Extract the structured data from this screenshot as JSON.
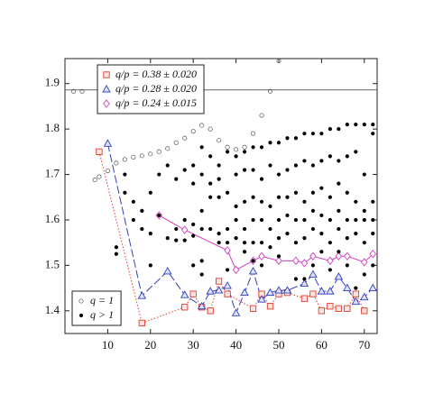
{
  "chart_data": {
    "type": "scatter",
    "xlim": [
      0,
      73
    ],
    "ylim": [
      1.35,
      1.955
    ],
    "xticks": [
      10,
      20,
      30,
      40,
      50,
      60,
      70
    ],
    "yticks": [
      1.4,
      1.5,
      1.6,
      1.7,
      1.8,
      1.9
    ],
    "hline": 1.886,
    "series": [
      {
        "name": "q/p = 0.38 ± 0.020",
        "color": "#e03c31",
        "marker": "square",
        "linestyle": "dotted",
        "legend_loc": "upper left",
        "x": [
          8,
          18,
          28,
          30,
          32,
          34,
          36,
          38,
          44,
          46,
          48,
          50,
          52,
          56,
          58,
          60,
          62,
          64,
          66,
          68,
          70
        ],
        "y": [
          1.75,
          1.373,
          1.408,
          1.437,
          1.408,
          1.4,
          1.465,
          1.437,
          1.405,
          1.437,
          1.41,
          1.437,
          1.44,
          1.427,
          1.437,
          1.4,
          1.41,
          1.405,
          1.405,
          1.437,
          1.4
        ]
      },
      {
        "name": "q/p = 0.28 ± 0.020",
        "color": "#3040c0",
        "marker": "triangle",
        "linestyle": "dashed",
        "legend_loc": "upper left",
        "x": [
          10,
          18,
          24,
          28,
          32,
          34,
          36,
          38,
          40,
          42,
          44,
          46,
          48,
          50,
          52,
          56,
          58,
          60,
          62,
          64,
          66,
          68,
          70,
          72
        ],
        "y": [
          1.768,
          1.433,
          1.487,
          1.435,
          1.41,
          1.443,
          1.445,
          1.455,
          1.395,
          1.44,
          1.487,
          1.425,
          1.44,
          1.445,
          1.445,
          1.46,
          1.48,
          1.443,
          1.443,
          1.475,
          1.45,
          1.42,
          1.43,
          1.45
        ]
      },
      {
        "name": "q/p = 0.24 ± 0.015",
        "color": "#d040c0",
        "marker": "diamond",
        "linestyle": "solid",
        "legend_loc": "upper left",
        "x": [
          22,
          28,
          38,
          40,
          44,
          46,
          50,
          54,
          56,
          58,
          62,
          64,
          66,
          70,
          72
        ],
        "y": [
          1.61,
          1.578,
          1.533,
          1.49,
          1.51,
          1.52,
          1.51,
          1.51,
          1.505,
          1.52,
          1.51,
          1.52,
          1.52,
          1.507,
          1.525
        ]
      },
      {
        "name": "q = 1",
        "color": "#555555",
        "marker": "circle",
        "legend_loc": "lower left",
        "x": [
          2,
          4,
          7,
          8,
          10,
          12,
          14,
          16,
          18,
          20,
          22,
          24,
          26,
          28,
          30,
          32,
          34,
          36,
          38,
          40,
          42,
          44,
          46,
          48,
          50
        ],
        "y": [
          1.883,
          1.883,
          1.688,
          1.695,
          1.708,
          1.725,
          1.733,
          1.738,
          1.741,
          1.745,
          1.75,
          1.757,
          1.77,
          1.78,
          1.795,
          1.808,
          1.8,
          1.775,
          1.76,
          1.755,
          1.76,
          1.79,
          1.83,
          1.883,
          1.95
        ]
      },
      {
        "name": "q > 1",
        "color": "#000000",
        "marker": "dot",
        "legend_loc": "lower left",
        "x": [
          12,
          12,
          14,
          14,
          16,
          16,
          18,
          18,
          20,
          20,
          20,
          22,
          22,
          24,
          24,
          26,
          26,
          26,
          28,
          28,
          28,
          30,
          30,
          30,
          30,
          30,
          32,
          32,
          32,
          32,
          32,
          32,
          34,
          34,
          34,
          34,
          36,
          36,
          36,
          36,
          36,
          38,
          38,
          38,
          38,
          38,
          40,
          40,
          40,
          40,
          40,
          42,
          42,
          42,
          42,
          42,
          42,
          44,
          44,
          44,
          44,
          44,
          44,
          46,
          46,
          46,
          46,
          46,
          46,
          48,
          48,
          48,
          48,
          48,
          50,
          50,
          50,
          50,
          50,
          50,
          52,
          52,
          52,
          52,
          52,
          54,
          54,
          54,
          54,
          54,
          54,
          56,
          56,
          56,
          56,
          56,
          56,
          58,
          58,
          58,
          58,
          58,
          58,
          60,
          60,
          60,
          60,
          60,
          60,
          62,
          62,
          62,
          62,
          62,
          62,
          64,
          64,
          64,
          64,
          64,
          64,
          66,
          66,
          66,
          66,
          66,
          66,
          68,
          68,
          68,
          68,
          68,
          68,
          70,
          70,
          70,
          70,
          70,
          70,
          72,
          72,
          72,
          72,
          72,
          72
        ],
        "y": [
          1.525,
          1.54,
          1.7,
          1.66,
          1.64,
          1.6,
          1.62,
          1.58,
          1.66,
          1.57,
          1.5,
          1.7,
          1.61,
          1.72,
          1.56,
          1.69,
          1.58,
          1.555,
          1.71,
          1.6,
          1.555,
          1.72,
          1.68,
          1.59,
          1.565,
          1.5,
          1.76,
          1.7,
          1.62,
          1.58,
          1.51,
          1.48,
          1.74,
          1.68,
          1.65,
          1.58,
          1.72,
          1.69,
          1.65,
          1.57,
          1.55,
          1.75,
          1.66,
          1.58,
          1.55,
          1.49,
          1.74,
          1.7,
          1.63,
          1.6,
          1.56,
          1.75,
          1.71,
          1.64,
          1.58,
          1.55,
          1.53,
          1.76,
          1.71,
          1.65,
          1.6,
          1.55,
          1.51,
          1.76,
          1.69,
          1.64,
          1.6,
          1.55,
          1.5,
          1.77,
          1.72,
          1.63,
          1.58,
          1.54,
          1.77,
          1.7,
          1.65,
          1.6,
          1.56,
          1.52,
          1.78,
          1.71,
          1.65,
          1.61,
          1.57,
          1.78,
          1.72,
          1.66,
          1.6,
          1.55,
          1.47,
          1.79,
          1.73,
          1.64,
          1.6,
          1.56,
          1.47,
          1.79,
          1.72,
          1.66,
          1.62,
          1.58,
          1.5,
          1.79,
          1.73,
          1.67,
          1.61,
          1.57,
          1.53,
          1.8,
          1.74,
          1.65,
          1.6,
          1.55,
          1.49,
          1.8,
          1.73,
          1.68,
          1.62,
          1.58,
          1.53,
          1.81,
          1.74,
          1.66,
          1.6,
          1.56,
          1.5,
          1.81,
          1.75,
          1.64,
          1.6,
          1.57,
          1.45,
          1.81,
          1.7,
          1.62,
          1.6,
          1.55,
          1.48,
          1.81,
          1.79,
          1.64,
          1.6,
          1.57,
          1.5
        ]
      }
    ]
  }
}
